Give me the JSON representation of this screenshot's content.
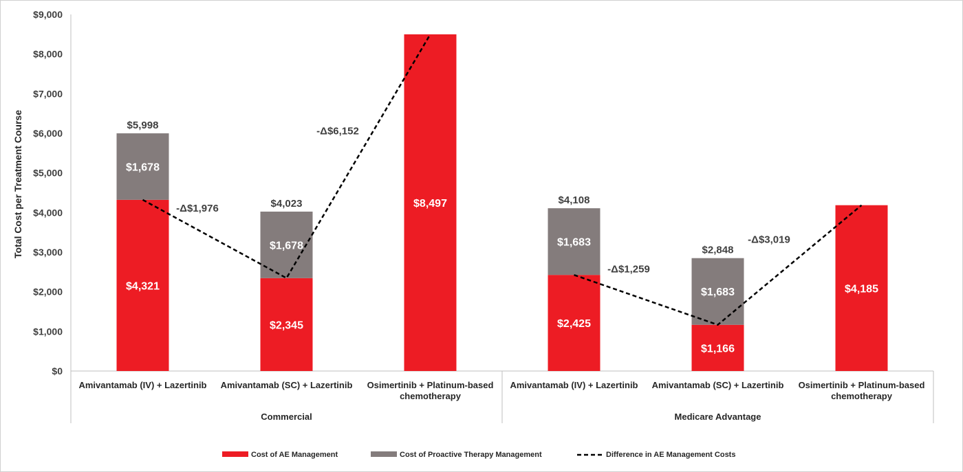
{
  "chart_data": {
    "type": "bar",
    "stacked": true,
    "ylabel": "Total Cost per Treatment Course",
    "ylim": [
      0,
      9000
    ],
    "y_ticks": [
      "$0",
      "$1,000",
      "$2,000",
      "$3,000",
      "$4,000",
      "$5,000",
      "$6,000",
      "$7,000",
      "$8,000",
      "$9,000"
    ],
    "grid": false,
    "legend_position": "bottom",
    "groups": [
      {
        "name": "Commercial",
        "categories": [
          {
            "label_lines": [
              "Amivantamab (IV) + Lazertinib"
            ],
            "ae": 4321,
            "proactive": 1678,
            "ae_label": "$4,321",
            "proactive_label": "$1,678",
            "total_label": "$5,998"
          },
          {
            "label_lines": [
              "Amivantamab (SC) + Lazertinib"
            ],
            "ae": 2345,
            "proactive": 1678,
            "ae_label": "$2,345",
            "proactive_label": "$1,678",
            "total_label": "$4,023"
          },
          {
            "label_lines": [
              "Osimertinib + Platinum-based",
              "chemotherapy"
            ],
            "ae": 8497,
            "proactive": 0,
            "ae_label": "$8,497",
            "proactive_label": "",
            "total_label": ""
          }
        ],
        "differences": [
          "-Δ$1,976",
          "-Δ$6,152"
        ]
      },
      {
        "name": "Medicare Advantage",
        "categories": [
          {
            "label_lines": [
              "Amivantamab (IV) + Lazertinib"
            ],
            "ae": 2425,
            "proactive": 1683,
            "ae_label": "$2,425",
            "proactive_label": "$1,683",
            "total_label": "$4,108"
          },
          {
            "label_lines": [
              "Amivantamab (SC) + Lazertinib"
            ],
            "ae": 1166,
            "proactive": 1683,
            "ae_label": "$1,166",
            "proactive_label": "$1,683",
            "total_label": "$2,848"
          },
          {
            "label_lines": [
              "Osimertinib + Platinum-based",
              "chemotherapy"
            ],
            "ae": 4185,
            "proactive": 0,
            "ae_label": "$4,185",
            "proactive_label": "",
            "total_label": ""
          }
        ],
        "differences": [
          "-Δ$1,259",
          "-Δ$3,019"
        ]
      }
    ],
    "series": [
      {
        "name": "Cost of AE Management",
        "color": "#ed1c24"
      },
      {
        "name": "Cost of Proactive Therapy Management",
        "color": "#847c7c"
      },
      {
        "name": "Difference in AE Management Costs",
        "color": "#000000",
        "style": "dashed-line"
      }
    ]
  }
}
